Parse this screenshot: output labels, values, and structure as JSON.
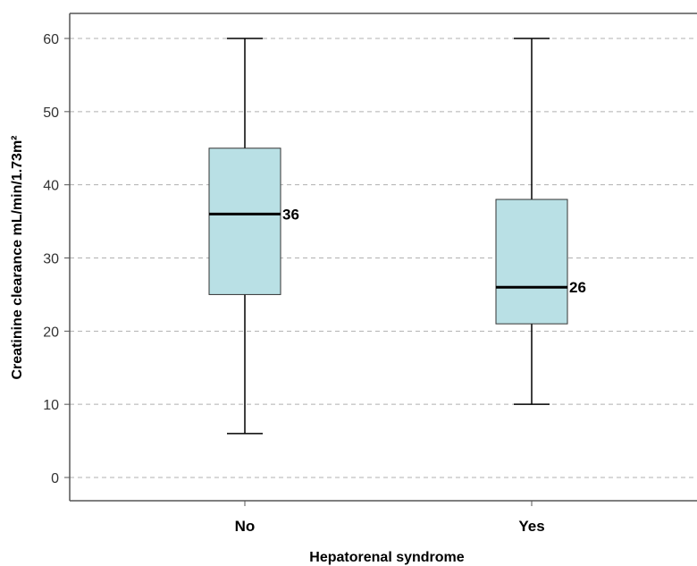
{
  "chart_data": {
    "type": "box",
    "xlabel": "Hepatorenal syndrome",
    "ylabel": "Creatinine clearance mL/min/1.73m²",
    "ylim": [
      0,
      60
    ],
    "yticks": [
      0,
      10,
      20,
      30,
      40,
      50,
      60
    ],
    "grid": "horizontal dashed",
    "categories": [
      "No",
      "Yes"
    ],
    "boxes": [
      {
        "category": "No",
        "min": 6,
        "q1": 25,
        "median": 36,
        "q3": 45,
        "max": 60,
        "median_label": "36"
      },
      {
        "category": "Yes",
        "min": 10,
        "q1": 21,
        "median": 26,
        "q3": 38,
        "max": 60,
        "median_label": "26"
      }
    ],
    "colors": {
      "box_fill": "#b9e0e5",
      "line": "#000000",
      "grid": "#b0b0b0",
      "frame": "#555555"
    }
  }
}
